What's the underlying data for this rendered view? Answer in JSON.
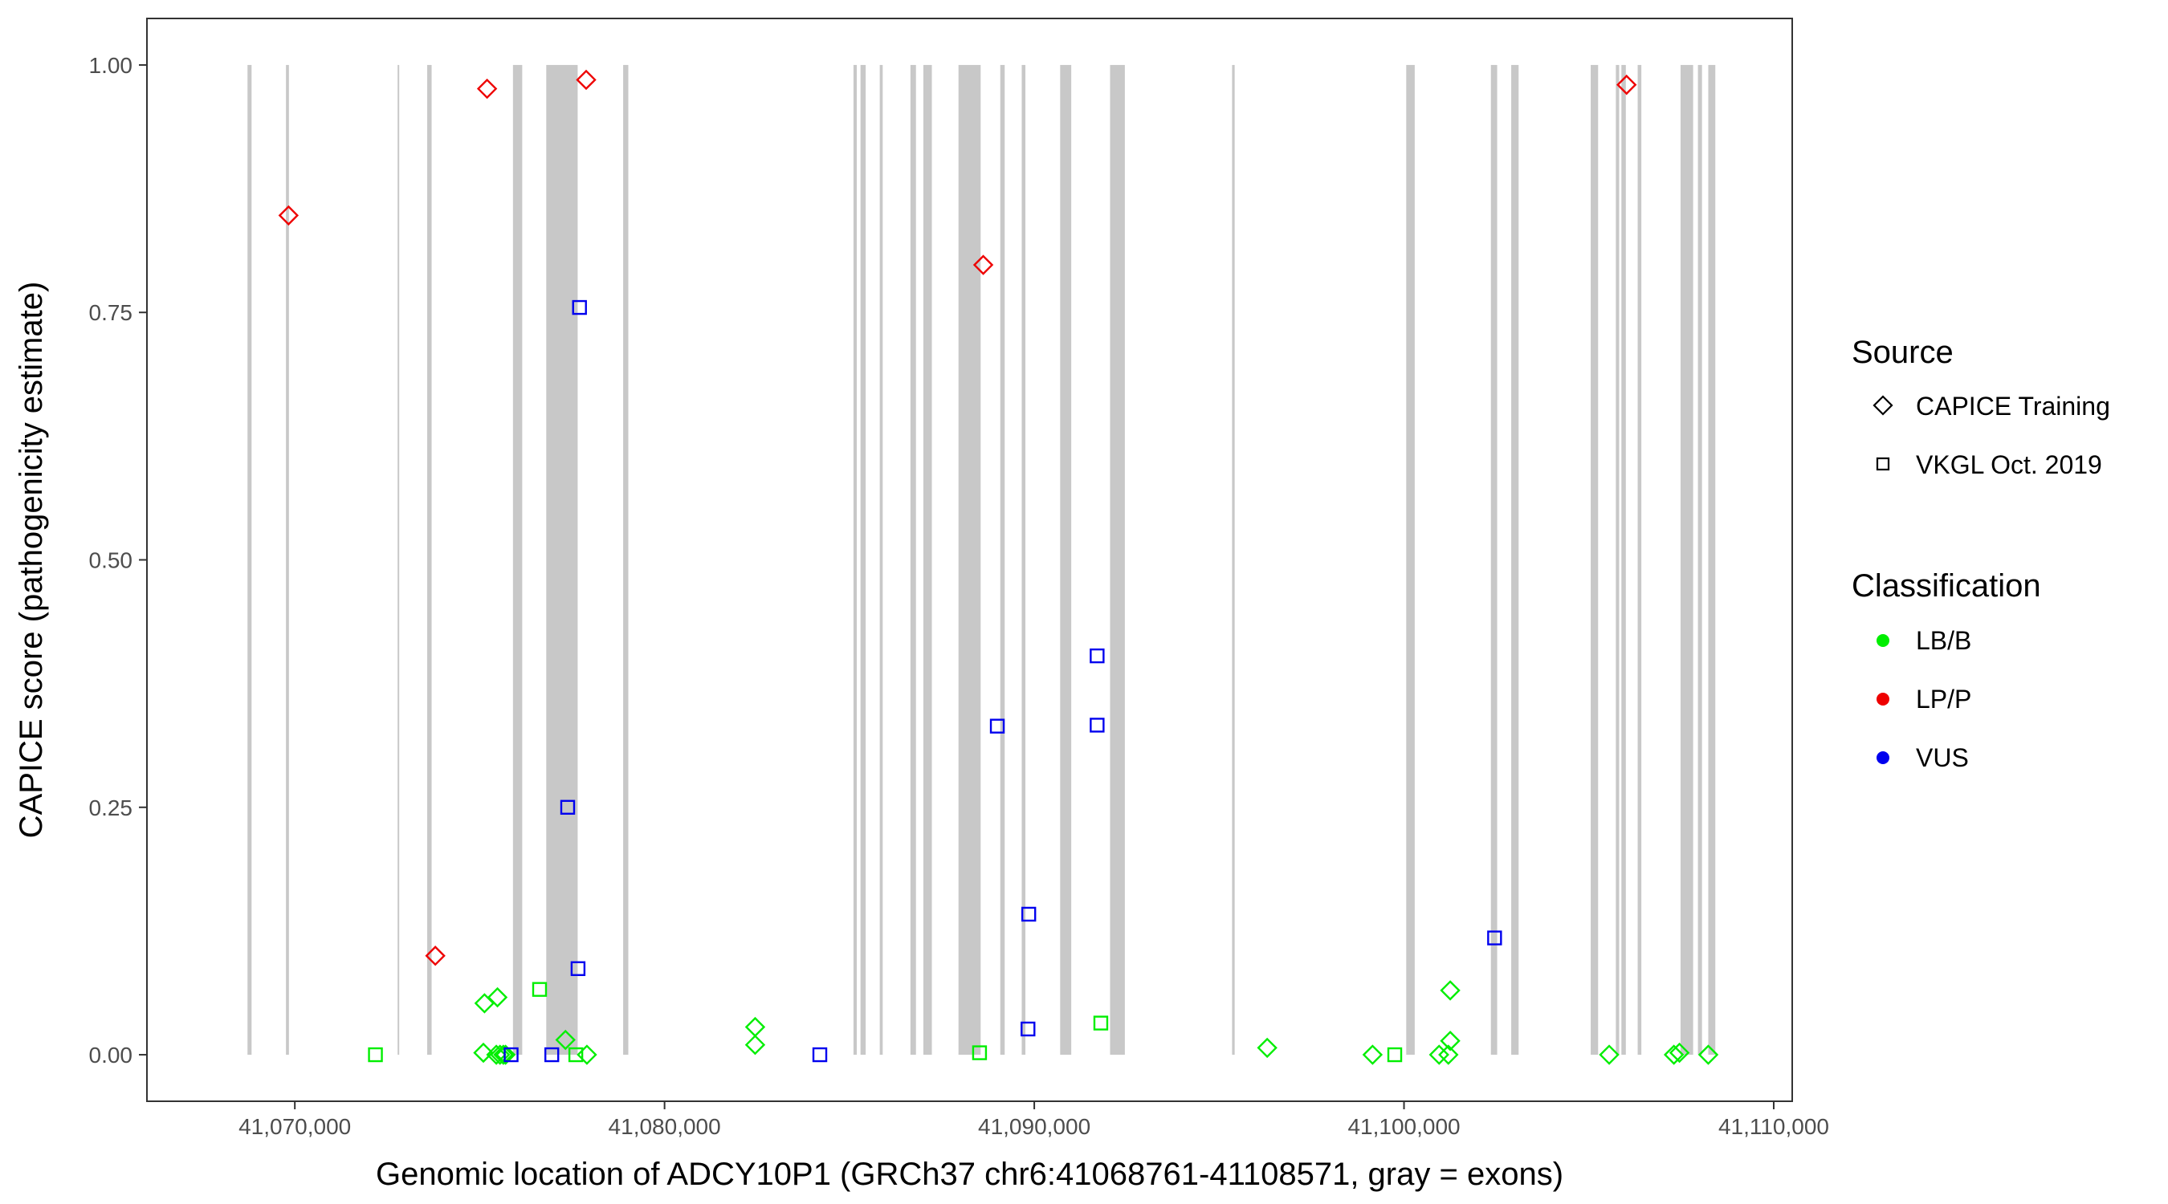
{
  "chart_data": {
    "type": "scatter",
    "xlabel": "Genomic location of ADCY10P1 (GRCh37 chr6:41068761-41108571, gray = exons)",
    "ylabel": "CAPICE score (pathogenicity estimate)",
    "xlim": [
      41066000,
      41110500
    ],
    "ylim": [
      -0.047,
      1.047
    ],
    "x_ticks": [
      41070000,
      41080000,
      41090000,
      41100000,
      41110000
    ],
    "x_tick_labels": [
      "41,070,000",
      "41,080,000",
      "41,090,000",
      "41,100,000",
      "41,110,000"
    ],
    "y_ticks": [
      0,
      0.25,
      0.5,
      0.75,
      1.0
    ],
    "y_tick_labels": [
      "0.00",
      "0.25",
      "0.50",
      "0.75",
      "1.00"
    ],
    "grid": false,
    "legend_position": "right",
    "exons": [
      [
        41068720,
        41068830
      ],
      [
        41069760,
        41069840
      ],
      [
        41072780,
        41072820
      ],
      [
        41073580,
        41073700
      ],
      [
        41075900,
        41076150
      ],
      [
        41076800,
        41077650
      ],
      [
        41078880,
        41079020
      ],
      [
        41085110,
        41085200
      ],
      [
        41085300,
        41085440
      ],
      [
        41085820,
        41085900
      ],
      [
        41086650,
        41086800
      ],
      [
        41087000,
        41087230
      ],
      [
        41087950,
        41088550
      ],
      [
        41089080,
        41089200
      ],
      [
        41089660,
        41089760
      ],
      [
        41090700,
        41091000
      ],
      [
        41092050,
        41092450
      ],
      [
        41095350,
        41095420
      ],
      [
        41100060,
        41100290
      ],
      [
        41102350,
        41102520
      ],
      [
        41102900,
        41103100
      ],
      [
        41105050,
        41105250
      ],
      [
        41105730,
        41105820
      ],
      [
        41105880,
        41106000
      ],
      [
        41106320,
        41106420
      ],
      [
        41107480,
        41107820
      ],
      [
        41107950,
        41108060
      ],
      [
        41108230,
        41108420
      ]
    ],
    "legends": {
      "source": {
        "title": "Source",
        "items": [
          {
            "label": "CAPICE Training",
            "shape": "diamond"
          },
          {
            "label": "VKGL Oct. 2019",
            "shape": "square"
          }
        ]
      },
      "classification": {
        "title": "Classification",
        "items": [
          {
            "label": "LB/B",
            "color": "#00ee00"
          },
          {
            "label": "LP/P",
            "color": "#ee0000"
          },
          {
            "label": "VUS",
            "color": "#0000ee"
          }
        ]
      }
    },
    "series": [
      {
        "source": "CAPICE Training",
        "classification": "LP/P",
        "points": [
          [
            41069830,
            0.848
          ],
          [
            41073800,
            0.1
          ],
          [
            41075200,
            0.976
          ],
          [
            41077880,
            0.985
          ],
          [
            41088620,
            0.798
          ],
          [
            41106020,
            0.98
          ]
        ]
      },
      {
        "source": "CAPICE Training",
        "classification": "LB/B",
        "points": [
          [
            41075130,
            0.052
          ],
          [
            41075480,
            0.058
          ],
          [
            41077320,
            0.015
          ],
          [
            41077900,
            0.0
          ],
          [
            41075100,
            0.002
          ],
          [
            41075450,
            0.0
          ],
          [
            41075550,
            0.0
          ],
          [
            41075640,
            0.0
          ],
          [
            41075700,
            0.0
          ],
          [
            41082450,
            0.028
          ],
          [
            41082450,
            0.01
          ],
          [
            41096300,
            0.007
          ],
          [
            41099150,
            0.0
          ],
          [
            41101250,
            0.065
          ],
          [
            41101250,
            0.014
          ],
          [
            41101200,
            0.0
          ],
          [
            41100950,
            0.0
          ],
          [
            41105550,
            0.0
          ],
          [
            41107300,
            0.0
          ],
          [
            41107450,
            0.002
          ],
          [
            41108230,
            0.0
          ]
        ]
      },
      {
        "source": "VKGL Oct. 2019",
        "classification": "LB/B",
        "points": [
          [
            41072180,
            0.0
          ],
          [
            41076620,
            0.066
          ],
          [
            41077600,
            0.0
          ],
          [
            41088520,
            0.002
          ],
          [
            41091800,
            0.032
          ],
          [
            41099750,
            0.0
          ]
        ]
      },
      {
        "source": "VKGL Oct. 2019",
        "classification": "VUS",
        "points": [
          [
            41077700,
            0.755
          ],
          [
            41077380,
            0.25
          ],
          [
            41077660,
            0.087
          ],
          [
            41075850,
            0.0
          ],
          [
            41076950,
            0.0
          ],
          [
            41084200,
            0.0
          ],
          [
            41089000,
            0.332
          ],
          [
            41089850,
            0.142
          ],
          [
            41089830,
            0.026
          ],
          [
            41091700,
            0.403
          ],
          [
            41091700,
            0.333
          ],
          [
            41102450,
            0.118
          ]
        ]
      }
    ]
  }
}
